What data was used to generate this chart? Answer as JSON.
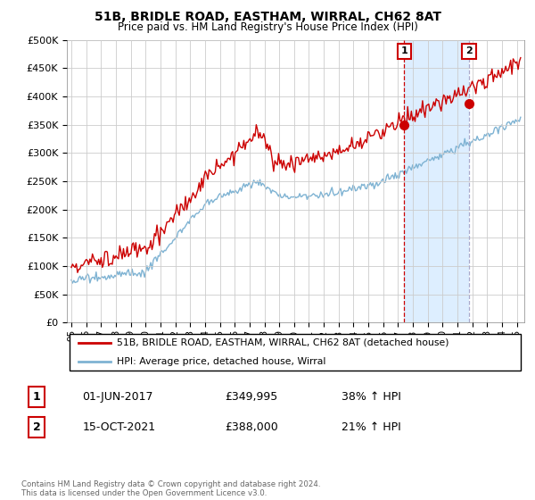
{
  "title": "51B, BRIDLE ROAD, EASTHAM, WIRRAL, CH62 8AT",
  "subtitle": "Price paid vs. HM Land Registry's House Price Index (HPI)",
  "ylabel_ticks": [
    "£0",
    "£50K",
    "£100K",
    "£150K",
    "£200K",
    "£250K",
    "£300K",
    "£350K",
    "£400K",
    "£450K",
    "£500K"
  ],
  "ytick_values": [
    0,
    50000,
    100000,
    150000,
    200000,
    250000,
    300000,
    350000,
    400000,
    450000,
    500000
  ],
  "ylim": [
    0,
    500000
  ],
  "xlim_start": 1994.7,
  "xlim_end": 2025.5,
  "red_line_color": "#cc0000",
  "blue_line_color": "#7fb3d3",
  "shade_color": "#ddeeff",
  "annotation_box_color": "#cc0000",
  "vline_color_1": "#cc0000",
  "vline_color_2": "#aaaacc",
  "legend_label_red": "51B, BRIDLE ROAD, EASTHAM, WIRRAL, CH62 8AT (detached house)",
  "legend_label_blue": "HPI: Average price, detached house, Wirral",
  "sale1_label": "1",
  "sale1_date": "01-JUN-2017",
  "sale1_price": "£349,995",
  "sale1_pct": "38% ↑ HPI",
  "sale2_label": "2",
  "sale2_date": "15-OCT-2021",
  "sale2_price": "£388,000",
  "sale2_pct": "21% ↑ HPI",
  "footer": "Contains HM Land Registry data © Crown copyright and database right 2024.\nThis data is licensed under the Open Government Licence v3.0.",
  "sale1_x": 2017.42,
  "sale1_y": 349995,
  "sale2_x": 2021.79,
  "sale2_y": 388000,
  "background_color": "#ffffff",
  "grid_color": "#cccccc"
}
